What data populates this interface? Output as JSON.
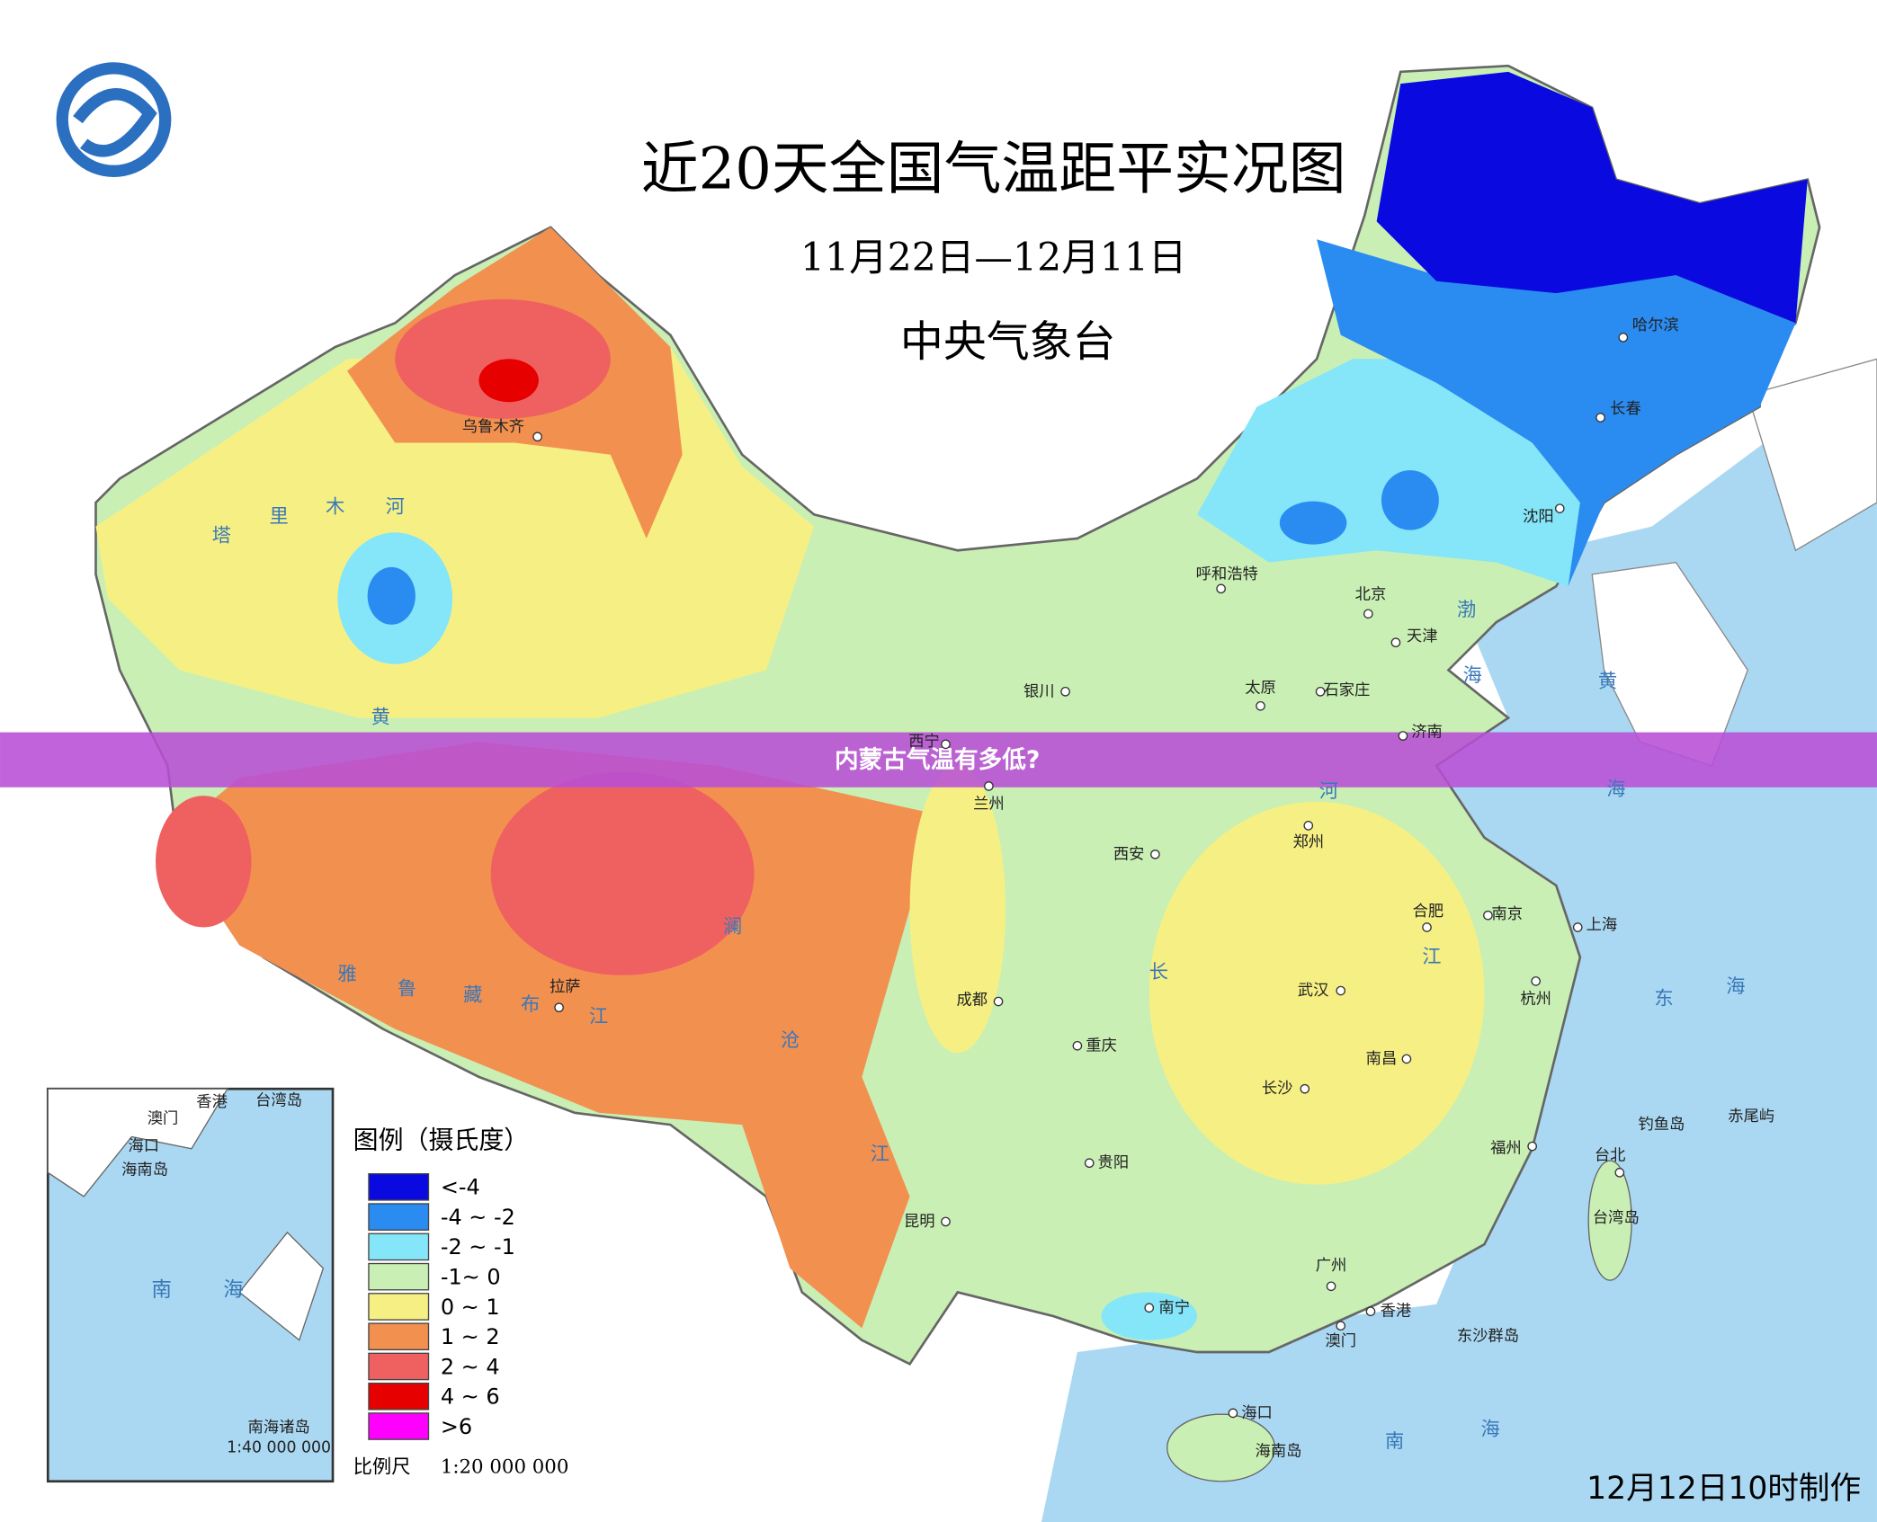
{
  "header": {
    "title": "近20天全国气温距平实况图",
    "period": "11月22日—12月11日",
    "issuer": "中央气象台"
  },
  "banner": {
    "text": "内蒙古气温有多低?"
  },
  "legend": {
    "title": "图例（摄氏度）",
    "items": [
      {
        "label": "<-4",
        "color": "#0a0ae0"
      },
      {
        "label": "-4 ~ -2",
        "color": "#2a8cf0"
      },
      {
        "label": "-2 ~ -1",
        "color": "#84e6f8"
      },
      {
        "label": "-1~ 0",
        "color": "#c9efb4"
      },
      {
        "label": "0 ~ 1",
        "color": "#f6f084"
      },
      {
        "label": "1 ~ 2",
        "color": "#f29050"
      },
      {
        "label": "2 ~ 4",
        "color": "#ef6060"
      },
      {
        "label": "4 ~ 6",
        "color": "#e60000"
      },
      {
        "label": ">6",
        "color": "#ff00ff"
      }
    ]
  },
  "scale": {
    "label": "比例尺",
    "value": "1:20 000 000"
  },
  "footer": {
    "made": "12月12日10时制作"
  },
  "map": {
    "cities": [
      "乌鲁木齐",
      "呼和浩特",
      "北京",
      "天津",
      "银川",
      "太原",
      "石家庄",
      "济南",
      "西宁",
      "兰州",
      "西安",
      "郑州",
      "合肥",
      "南京",
      "上海",
      "拉萨",
      "成都",
      "武汉",
      "杭州",
      "重庆",
      "南昌",
      "长沙",
      "贵阳",
      "福州",
      "台北",
      "昆明",
      "广州",
      "南宁",
      "香港",
      "澳门",
      "海口",
      "哈尔滨",
      "长春",
      "沈阳"
    ],
    "places": [
      "海南岛",
      "台湾岛",
      "钓鱼岛",
      "赤尾屿",
      "东沙群岛"
    ],
    "spaced": [
      "塔里木河",
      "黄河",
      "长江",
      "雅鲁藏布江",
      "澜沧江",
      "渤海",
      "黄海",
      "东海",
      "南海"
    ]
  },
  "inset": {
    "labels": [
      "香港",
      "台湾岛",
      "澳门",
      "海口",
      "海南岛",
      "南海",
      "南海诸岛",
      "1:40 000 000"
    ]
  }
}
